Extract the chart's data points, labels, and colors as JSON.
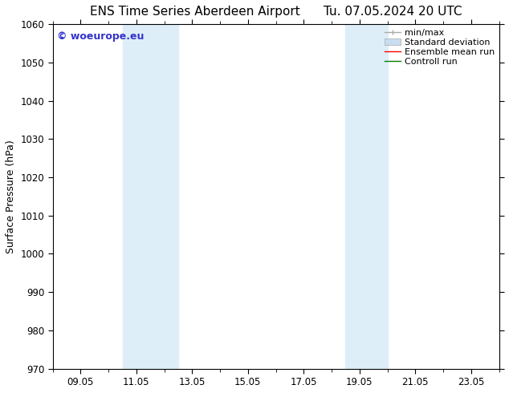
{
  "title": "ENS Time Series Aberdeen Airport      Tu. 07.05.2024 20 UTC",
  "ylabel": "Surface Pressure (hPa)",
  "ylim": [
    970,
    1060
  ],
  "yticks": [
    970,
    980,
    990,
    1000,
    1010,
    1020,
    1030,
    1040,
    1050,
    1060
  ],
  "xlim": [
    0,
    16
  ],
  "xtick_labels": [
    "09.05",
    "11.05",
    "13.05",
    "15.05",
    "17.05",
    "19.05",
    "21.05",
    "23.05"
  ],
  "xtick_positions": [
    1,
    3,
    5,
    7,
    9,
    11,
    13,
    15
  ],
  "shaded_bands": [
    {
      "x_start": 2.5,
      "x_end": 4.5
    },
    {
      "x_start": 10.5,
      "x_end": 12.0
    }
  ],
  "shade_color": "#ddeef8",
  "watermark_text": "© woeurope.eu",
  "watermark_color": "#3333cc",
  "background_color": "#ffffff",
  "grid_color": "#bbbbbb",
  "title_fontsize": 11,
  "axis_label_fontsize": 9,
  "tick_fontsize": 8.5,
  "legend_fontsize": 8,
  "minmax_color": "#aaaaaa",
  "stddev_color": "#c8ddf0",
  "mean_color": "red",
  "control_color": "green"
}
